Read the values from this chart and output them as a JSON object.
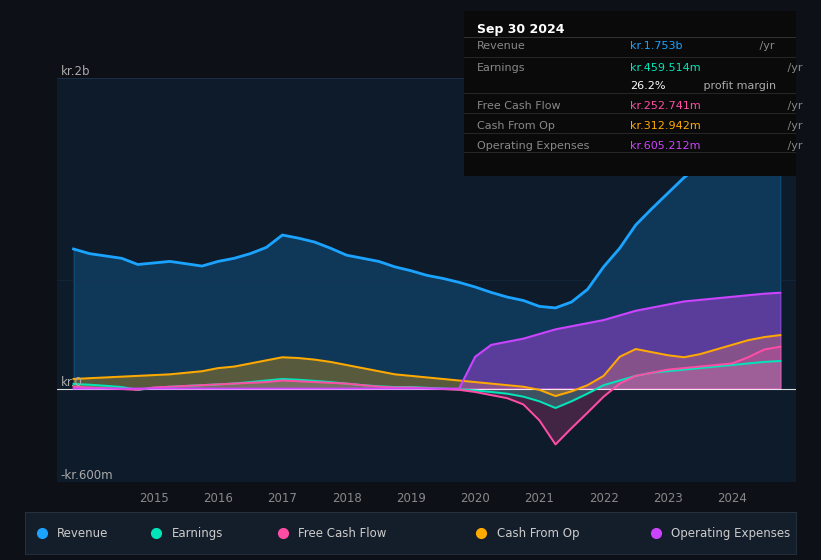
{
  "bg_color": "#0d1117",
  "plot_bg_color": "#0d1b2a",
  "box_bg_color": "#0a0a0a",
  "years": [
    2013.75,
    2014.0,
    2014.25,
    2014.5,
    2014.75,
    2015.0,
    2015.25,
    2015.5,
    2015.75,
    2016.0,
    2016.25,
    2016.5,
    2016.75,
    2017.0,
    2017.25,
    2017.5,
    2017.75,
    2018.0,
    2018.25,
    2018.5,
    2018.75,
    2019.0,
    2019.25,
    2019.5,
    2019.75,
    2020.0,
    2020.25,
    2020.5,
    2020.75,
    2021.0,
    2021.25,
    2021.5,
    2021.75,
    2022.0,
    2022.25,
    2022.5,
    2022.75,
    2023.0,
    2023.25,
    2023.5,
    2023.75,
    2024.0,
    2024.25,
    2024.5,
    2024.75
  ],
  "revenue": [
    900,
    870,
    855,
    840,
    800,
    810,
    820,
    805,
    790,
    820,
    840,
    870,
    910,
    990,
    970,
    945,
    905,
    860,
    840,
    820,
    785,
    760,
    730,
    710,
    685,
    655,
    620,
    590,
    568,
    530,
    520,
    558,
    640,
    785,
    905,
    1055,
    1160,
    1260,
    1360,
    1440,
    1530,
    1660,
    1760,
    1820,
    1900
  ],
  "earnings": [
    30,
    25,
    18,
    10,
    -8,
    5,
    12,
    17,
    22,
    27,
    33,
    42,
    52,
    62,
    57,
    50,
    42,
    32,
    22,
    15,
    10,
    10,
    5,
    0,
    -5,
    -12,
    -22,
    -33,
    -52,
    -82,
    -125,
    -82,
    -32,
    22,
    52,
    82,
    102,
    112,
    122,
    132,
    142,
    152,
    162,
    172,
    178
  ],
  "free_cash_flow": [
    12,
    7,
    2,
    -3,
    -8,
    7,
    12,
    17,
    22,
    27,
    32,
    37,
    42,
    52,
    47,
    42,
    37,
    32,
    22,
    12,
    7,
    7,
    2,
    -3,
    -8,
    -22,
    -42,
    -62,
    -102,
    -205,
    -360,
    -255,
    -155,
    -52,
    32,
    82,
    102,
    122,
    132,
    142,
    152,
    162,
    202,
    252,
    270
  ],
  "cash_from_op": [
    62,
    67,
    72,
    77,
    82,
    87,
    92,
    102,
    112,
    132,
    142,
    162,
    182,
    202,
    197,
    187,
    172,
    152,
    132,
    112,
    92,
    82,
    72,
    62,
    52,
    42,
    32,
    22,
    12,
    -8,
    -48,
    -18,
    22,
    82,
    205,
    255,
    235,
    215,
    202,
    222,
    252,
    282,
    312,
    332,
    345
  ],
  "op_expenses": [
    0,
    0,
    0,
    0,
    0,
    0,
    0,
    0,
    0,
    0,
    0,
    0,
    0,
    0,
    0,
    0,
    0,
    0,
    0,
    0,
    0,
    0,
    0,
    0,
    0,
    205,
    282,
    302,
    322,
    352,
    382,
    402,
    422,
    442,
    472,
    502,
    522,
    542,
    562,
    572,
    582,
    592,
    602,
    612,
    618
  ],
  "ylim": [
    -600,
    2000
  ],
  "xlim": [
    2013.5,
    2025.0
  ],
  "xtick_positions": [
    2015,
    2016,
    2017,
    2018,
    2019,
    2020,
    2021,
    2022,
    2023,
    2024
  ],
  "ylabel_texts": [
    "kr.2b",
    "kr.0",
    "-kr.600m"
  ],
  "ylabel_values": [
    2000,
    0,
    -600
  ],
  "colors": {
    "revenue": "#1aa3ff",
    "earnings": "#00e6b8",
    "free_cash_flow": "#ff4da6",
    "cash_from_op": "#ffaa00",
    "op_expenses": "#cc44ff"
  },
  "info_box": {
    "date": "Sep 30 2024",
    "rows": [
      {
        "label": "Revenue",
        "value": "kr.1.753b",
        "value_color": "#1aa3ff",
        "unit": " /yr",
        "extra": null
      },
      {
        "label": "Earnings",
        "value": "kr.459.514m",
        "value_color": "#00e6b8",
        "unit": " /yr",
        "extra": null
      },
      {
        "label": "",
        "value": "26.2%",
        "value_color": "#ffffff",
        "unit": "",
        "extra": " profit margin"
      },
      {
        "label": "Free Cash Flow",
        "value": "kr.252.741m",
        "value_color": "#ff4da6",
        "unit": " /yr",
        "extra": null
      },
      {
        "label": "Cash From Op",
        "value": "kr.312.942m",
        "value_color": "#ffaa00",
        "unit": " /yr",
        "extra": null
      },
      {
        "label": "Operating Expenses",
        "value": "kr.605.212m",
        "value_color": "#cc44ff",
        "unit": " /yr",
        "extra": null
      }
    ]
  },
  "legend": [
    {
      "label": "Revenue",
      "color": "#1aa3ff"
    },
    {
      "label": "Earnings",
      "color": "#00e6b8"
    },
    {
      "label": "Free Cash Flow",
      "color": "#ff4da6"
    },
    {
      "label": "Cash From Op",
      "color": "#ffaa00"
    },
    {
      "label": "Operating Expenses",
      "color": "#cc44ff"
    }
  ]
}
